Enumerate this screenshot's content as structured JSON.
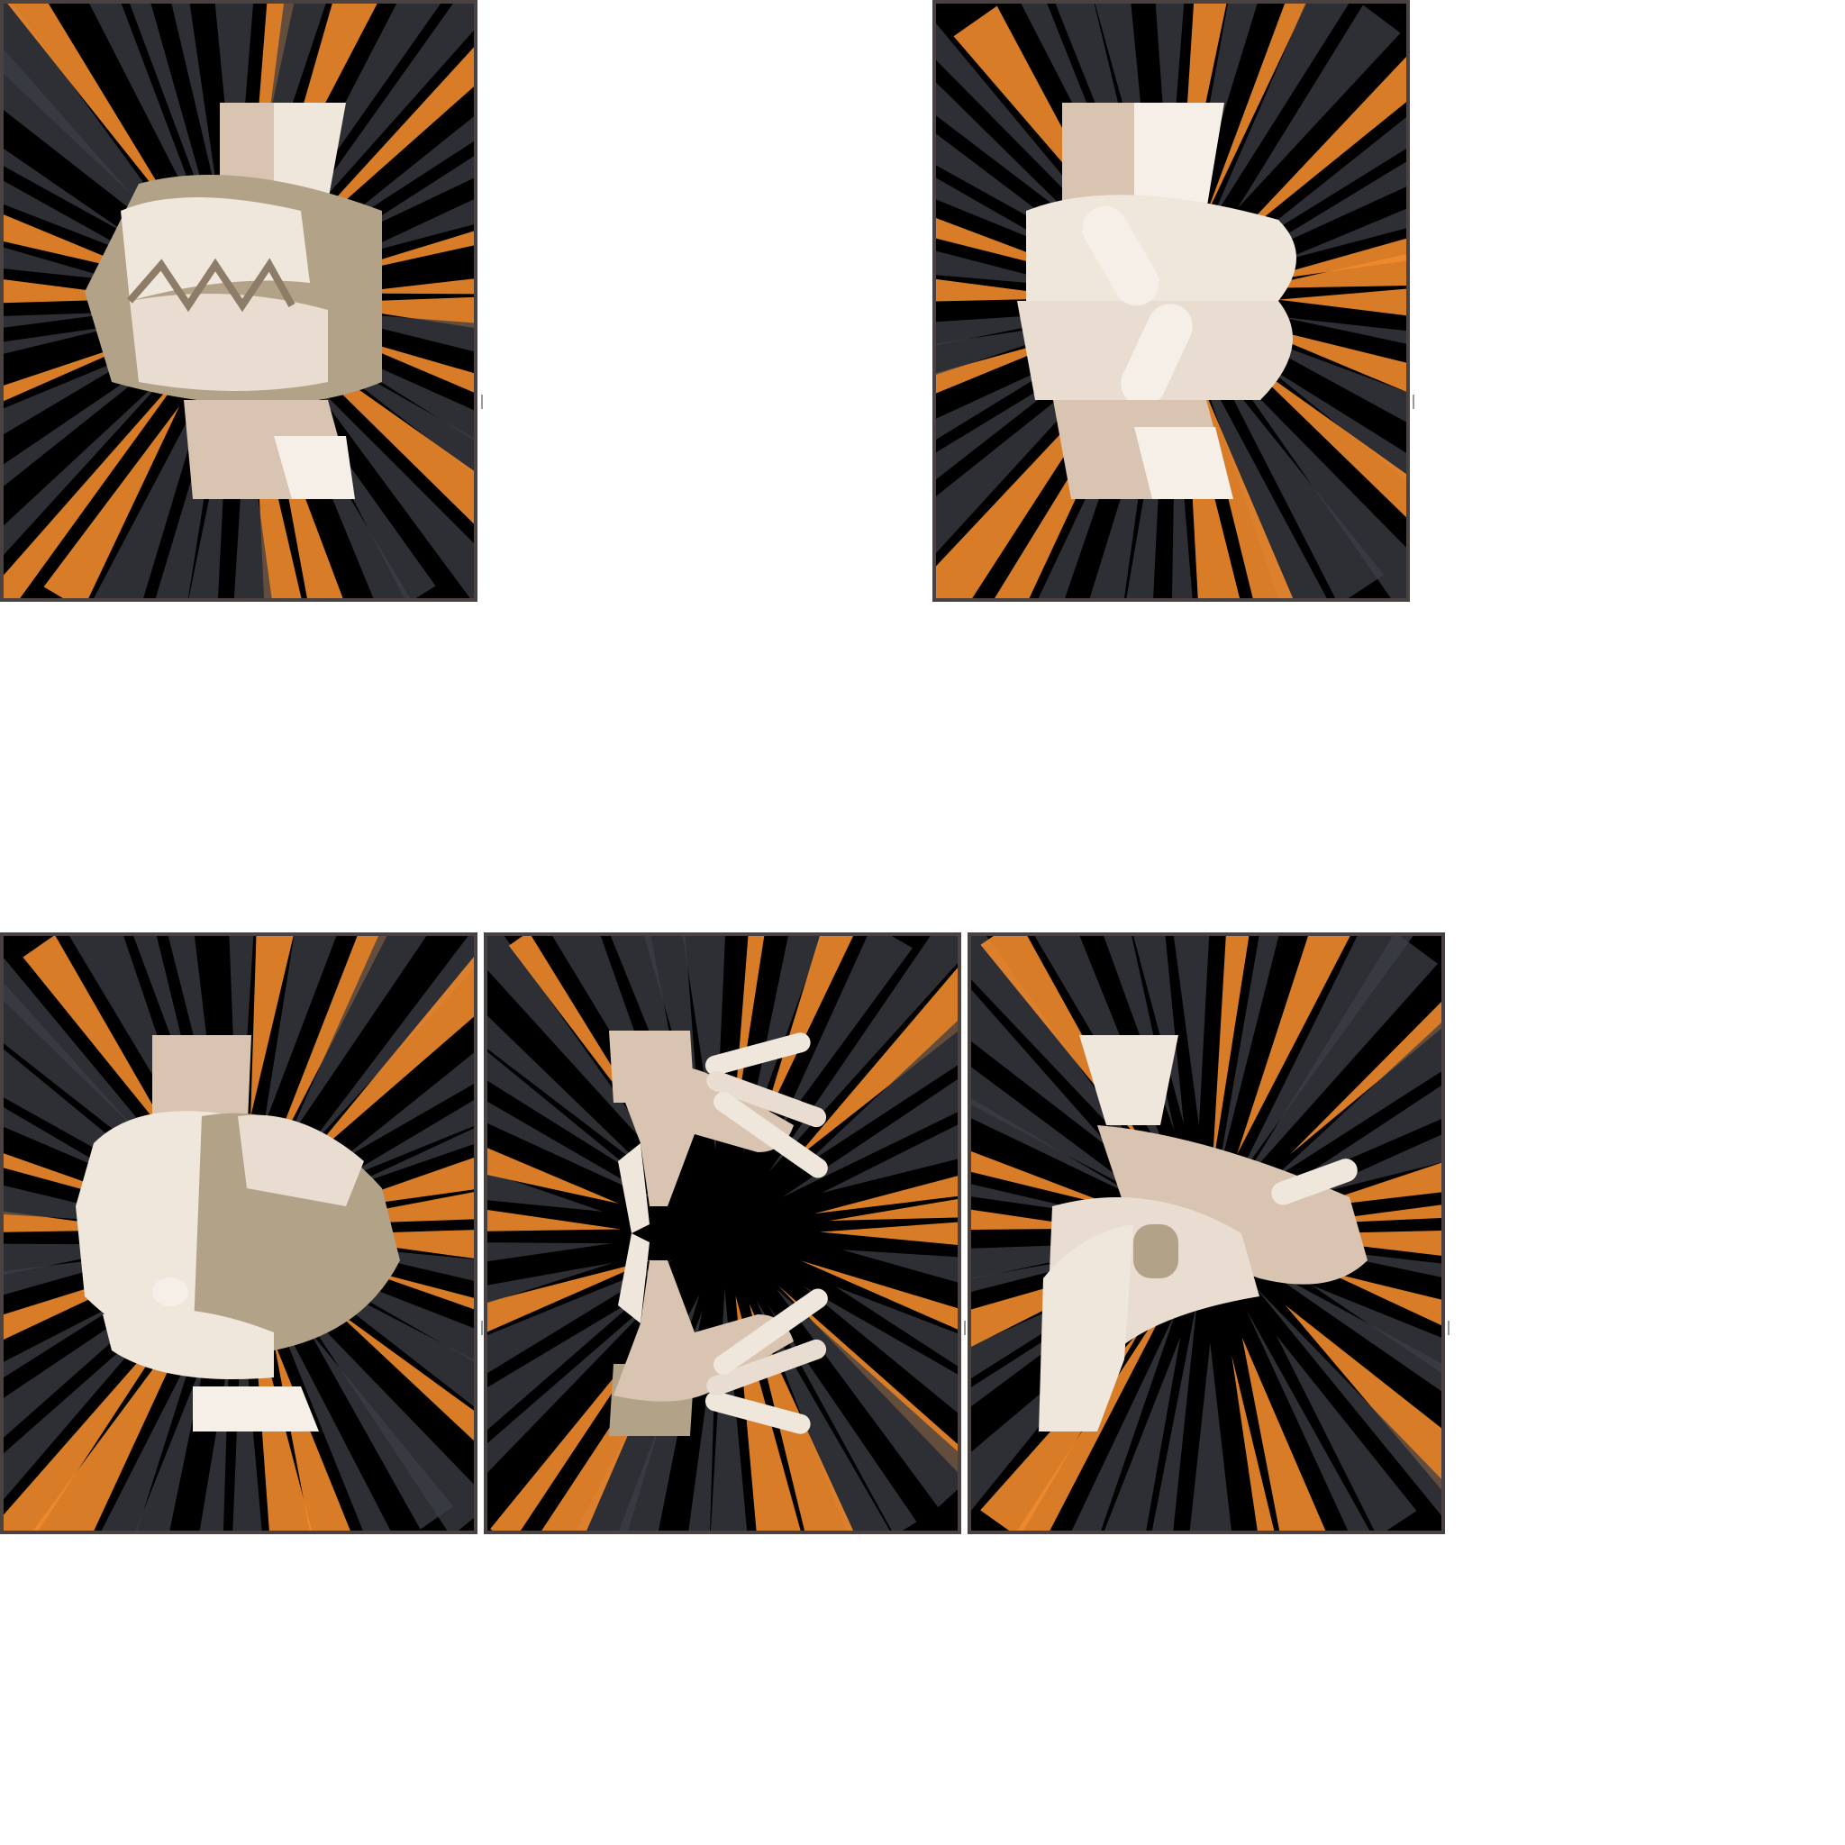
{
  "colors": {
    "background": "#000000",
    "frame": "#4a4240",
    "burst_orange": "#f08a2c",
    "burst_gray": "#3c3f46",
    "skin_light": "#efe6dc",
    "skin_mid": "#d8c4b0",
    "skin_shadow": "#a8957e"
  },
  "panels": [
    {
      "id": "panel-1",
      "illustration": "interlocked-fists-hands"
    },
    {
      "id": "panel-2",
      "illustration": "pinky-grip-hands"
    },
    {
      "id": "panel-3",
      "illustration": "hand-clasping-fist"
    },
    {
      "id": "panel-4",
      "illustration": "mirrored-reaching-hands"
    },
    {
      "id": "panel-5",
      "illustration": "crossed-arm-grip-hands"
    }
  ]
}
